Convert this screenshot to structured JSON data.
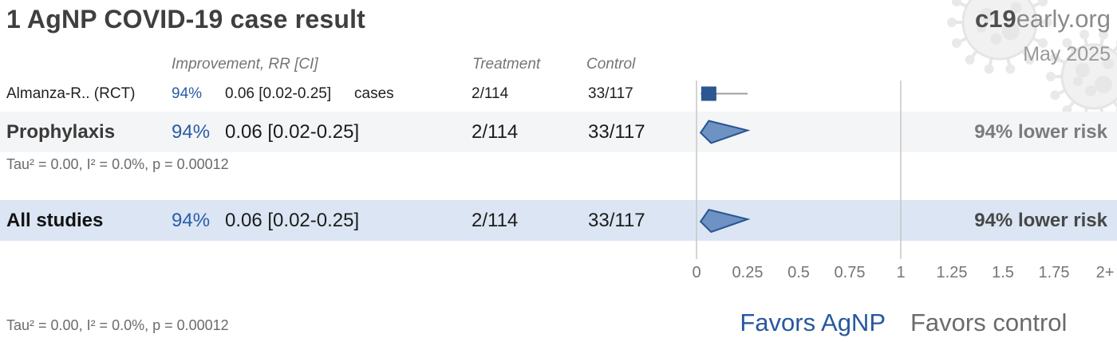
{
  "header": {
    "title": "1 AgNP COVID-19 case result",
    "brand_bold": "c19",
    "brand_rest": "early.org",
    "date": "May 2025"
  },
  "columns": {
    "improvement": "Improvement, RR [CI]",
    "treatment": "Treatment",
    "control": "Control"
  },
  "rows": {
    "study": {
      "label": "Almanza-R.. (RCT)",
      "pct": "94%",
      "rr": "0.06 [0.02-0.25]",
      "outcome": "cases",
      "treatment": "2/114",
      "control": "33/117"
    },
    "prophylaxis": {
      "label": "Prophylaxis",
      "pct": "94%",
      "rr": "0.06 [0.02-0.25]",
      "treatment": "2/114",
      "control": "33/117",
      "effect": "94% lower risk"
    },
    "all_studies": {
      "label": "All studies",
      "pct": "94%",
      "rr": "0.06 [0.02-0.25]",
      "treatment": "2/114",
      "control": "33/117",
      "effect": "94% lower risk"
    }
  },
  "stats": {
    "prophylaxis": "Tau² = 0.00, I² = 0.0%, p = 0.00012",
    "overall": "Tau² = 0.00, I² = 0.0%, p = 0.00012"
  },
  "footer": {
    "favors_left": "Favors AgNP",
    "favors_right": "Favors control"
  },
  "colors": {
    "accent_blue": "#2a5ca8",
    "marker_dark": "#2a5691",
    "diamond_fill": "#6d92c3",
    "ci_line": "#9e9e9e",
    "gridline": "#c6c6c6",
    "row_gray": "#f4f5f6",
    "row_blue": "#dbe5f3"
  },
  "chart_data": {
    "type": "forest",
    "title": "1 AgNP COVID-19 case result",
    "x_axis": {
      "range": [
        0,
        2
      ],
      "gridlines": [
        0,
        1
      ],
      "ticks": [
        {
          "v": 0,
          "label": "0"
        },
        {
          "v": 0.25,
          "label": "0.25"
        },
        {
          "v": 0.5,
          "label": "0.5"
        },
        {
          "v": 0.75,
          "label": "0.75"
        },
        {
          "v": 1,
          "label": "1"
        },
        {
          "v": 1.25,
          "label": "1.25"
        },
        {
          "v": 1.5,
          "label": "1.5"
        },
        {
          "v": 1.75,
          "label": "1.75"
        },
        {
          "v": 2,
          "label": "2+"
        }
      ]
    },
    "series": [
      {
        "name": "Almanza-R.. (RCT)",
        "marker": "square",
        "rr": 0.06,
        "ci": [
          0.02,
          0.25
        ],
        "improvement_pct": 94,
        "outcome": "cases",
        "treatment_events": 2,
        "treatment_total": 114,
        "control_events": 33,
        "control_total": 117
      },
      {
        "name": "Prophylaxis",
        "marker": "diamond",
        "rr": 0.06,
        "ci": [
          0.02,
          0.25
        ],
        "improvement_pct": 94,
        "treatment_events": 2,
        "treatment_total": 114,
        "control_events": 33,
        "control_total": 117,
        "summary": "94% lower risk"
      },
      {
        "name": "All studies",
        "marker": "diamond",
        "rr": 0.06,
        "ci": [
          0.02,
          0.25
        ],
        "improvement_pct": 94,
        "treatment_events": 2,
        "treatment_total": 114,
        "control_events": 33,
        "control_total": 117,
        "summary": "94% lower risk"
      }
    ],
    "heterogeneity": {
      "prophylaxis": "Tau² = 0.00, I² = 0.0%, p = 0.00012",
      "overall": "Tau² = 0.00, I² = 0.0%, p = 0.00012"
    },
    "footnotes": {
      "favors_left": "Favors AgNP",
      "favors_right": "Favors control"
    }
  }
}
